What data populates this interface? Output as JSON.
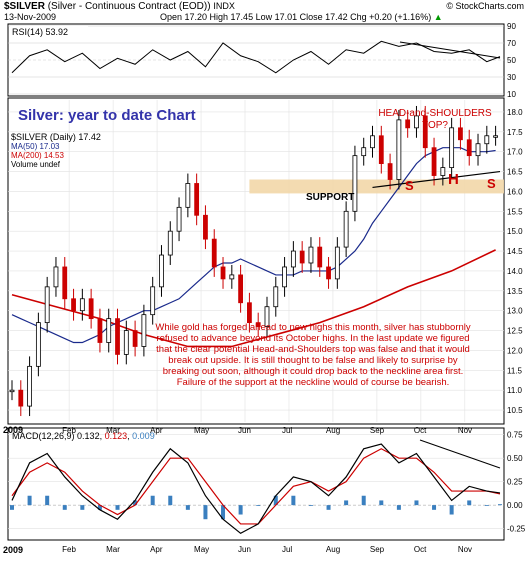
{
  "header": {
    "symbol": "$SILVER",
    "description": "(Silver - Continuous Contract (EOD))",
    "exchange": "INDX",
    "brand": "© StockCharts.com",
    "date": "13-Nov-2009",
    "ohlc": "Open 17.20  High 17.45  Low 17.01  Close 17.42  Chg +0.20 (+1.16%)",
    "change_arrow": "▲"
  },
  "colors": {
    "price_up": "#000000",
    "price_down": "#cc0000",
    "ma50": "#1a2a8c",
    "ma200": "#cc0000",
    "macd_line": "#000000",
    "signal_line": "#cc0000",
    "histogram": "#3a7fbf",
    "annotation": "#cc0000",
    "support_band": "#f2d7a8",
    "title_text": "#3333aa"
  },
  "rsi_panel": {
    "label": "RSI(14) 53.92",
    "levels": [
      "90",
      "70",
      "50",
      "30",
      "10"
    ]
  },
  "main_panel": {
    "title": "Silver: year to date Chart",
    "legend": {
      "symbol": "$SILVER (Daily) 17.42",
      "ma50": "MA(50) 17.03",
      "ma200": "MA(200) 14.53",
      "volume": "Volume undef"
    },
    "hs_label": "HEAD-and-SHOULDERS\nTOP?",
    "support_label": "SUPPORT",
    "s_left": "S",
    "head": "H",
    "s_right": "S",
    "commentary": "While gold has forged ahead to new highs this month, silver has stubbornly refused to advance beyond its October highs. In the last update we figured that the clear potential Head-and-Shoulders top was false and that it would break out upside. It is still thought to be false and likely to surprise by breaking out soon, although it could drop back to the neckline area first. Failure of the support at the neckline would of course be bearish.",
    "year_label": "2009"
  },
  "macd_panel": {
    "label": "MACD(12,26,9)",
    "macd": "0.132",
    "signal": "0.123",
    "hist": "0.009",
    "year_label": "2009"
  },
  "x_axis": {
    "months": [
      "Feb",
      "Mar",
      "Apr",
      "May",
      "Jun",
      "Jul",
      "Aug",
      "Sep",
      "Oct",
      "Nov"
    ]
  },
  "chart_data": [
    {
      "type": "line",
      "name": "RSI(14)",
      "ylim": [
        10,
        90
      ],
      "yticks": [
        90,
        70,
        50,
        30,
        10
      ],
      "x": [
        0,
        8,
        16,
        24,
        32,
        40,
        48,
        56,
        64,
        72,
        80,
        88,
        96,
        104,
        112,
        120,
        128,
        136,
        144,
        152,
        160,
        168,
        176,
        184,
        192,
        200,
        208,
        216,
        222
      ],
      "values": [
        35,
        55,
        62,
        48,
        58,
        40,
        52,
        45,
        62,
        50,
        60,
        42,
        70,
        55,
        48,
        35,
        50,
        60,
        45,
        62,
        58,
        72,
        66,
        70,
        60,
        58,
        62,
        48,
        54
      ]
    },
    {
      "type": "candlestick",
      "name": "$SILVER (Daily)",
      "ylim": [
        10.2,
        18.3
      ],
      "yticks": [
        18.0,
        17.5,
        17.0,
        16.5,
        16.0,
        15.5,
        15.0,
        14.5,
        14.0,
        13.5,
        13.0,
        12.5,
        12.0,
        11.5,
        11.0,
        10.5
      ],
      "x": [
        0,
        4,
        8,
        12,
        16,
        20,
        24,
        28,
        32,
        36,
        40,
        44,
        48,
        52,
        56,
        60,
        64,
        68,
        72,
        76,
        80,
        84,
        88,
        92,
        96,
        100,
        104,
        108,
        112,
        116,
        120,
        124,
        128,
        132,
        136,
        140,
        144,
        148,
        152,
        156,
        160,
        164,
        168,
        172,
        176,
        180,
        184,
        188,
        192,
        196,
        200,
        204,
        208,
        212,
        216,
        220
      ],
      "values": [
        11.0,
        10.6,
        11.6,
        12.7,
        13.6,
        14.1,
        13.3,
        13.0,
        13.3,
        12.8,
        12.2,
        12.8,
        11.9,
        12.5,
        12.1,
        12.9,
        13.6,
        14.4,
        15.0,
        15.6,
        16.2,
        15.4,
        14.8,
        14.1,
        13.8,
        13.9,
        13.2,
        12.7,
        12.6,
        13.1,
        13.6,
        14.1,
        14.5,
        14.2,
        14.6,
        14.1,
        13.8,
        14.6,
        15.5,
        16.9,
        17.1,
        17.4,
        16.7,
        16.3,
        17.8,
        17.6,
        17.9,
        17.1,
        16.4,
        16.6,
        17.6,
        17.3,
        16.9,
        17.2,
        17.4,
        17.4
      ],
      "ma50": [
        12.9,
        12.8,
        12.7,
        12.6,
        12.5,
        12.4,
        12.3,
        12.2,
        12.2,
        12.3,
        12.4,
        12.6,
        12.7,
        12.8,
        12.9,
        13.0,
        13.0,
        13.1,
        13.2,
        13.3,
        13.5,
        13.7,
        13.9,
        14.1,
        14.2,
        14.2,
        14.3,
        14.2,
        14.1,
        14.0,
        13.9,
        13.9,
        13.9,
        14.0,
        14.0,
        14.0,
        14.0,
        14.1,
        14.3,
        14.5,
        14.8,
        15.2,
        15.5,
        15.8,
        16.1,
        16.4,
        16.7,
        16.9,
        17.0,
        17.1,
        17.1,
        17.1,
        17.0,
        17.0,
        17.0,
        17.03
      ],
      "ma200_x": [
        0,
        20,
        40,
        60,
        80,
        100,
        120,
        140,
        160,
        180,
        200,
        220
      ],
      "ma200": [
        13.4,
        13.1,
        12.8,
        12.4,
        12.1,
        12.1,
        12.4,
        12.7,
        13.1,
        13.6,
        14.0,
        14.53
      ],
      "support_band": [
        15.95,
        16.3
      ],
      "neckline": [
        [
          164,
          16.1
        ],
        [
          222,
          16.5
        ]
      ]
    },
    {
      "type": "line",
      "name": "MACD(12,26,9)",
      "ylim": [
        -0.35,
        0.8
      ],
      "yticks": [
        0.75,
        0.5,
        0.25,
        0.0,
        -0.25
      ],
      "x": [
        0,
        8,
        16,
        24,
        32,
        40,
        48,
        56,
        64,
        72,
        80,
        88,
        96,
        104,
        112,
        120,
        128,
        136,
        144,
        152,
        160,
        168,
        176,
        184,
        192,
        200,
        208,
        216,
        222
      ],
      "macd": [
        0.05,
        0.45,
        0.55,
        0.3,
        0.1,
        -0.05,
        -0.15,
        0.05,
        0.35,
        0.6,
        0.45,
        0.1,
        -0.15,
        -0.3,
        -0.2,
        0.1,
        0.3,
        0.25,
        0.1,
        0.3,
        0.6,
        0.65,
        0.45,
        0.55,
        0.3,
        0.05,
        0.2,
        0.15,
        0.13
      ],
      "signal": [
        0.1,
        0.35,
        0.45,
        0.35,
        0.15,
        0.0,
        -0.1,
        0.0,
        0.25,
        0.5,
        0.5,
        0.25,
        0.0,
        -0.2,
        -0.2,
        0.0,
        0.2,
        0.25,
        0.15,
        0.25,
        0.5,
        0.6,
        0.5,
        0.5,
        0.35,
        0.15,
        0.15,
        0.15,
        0.12
      ]
    }
  ]
}
